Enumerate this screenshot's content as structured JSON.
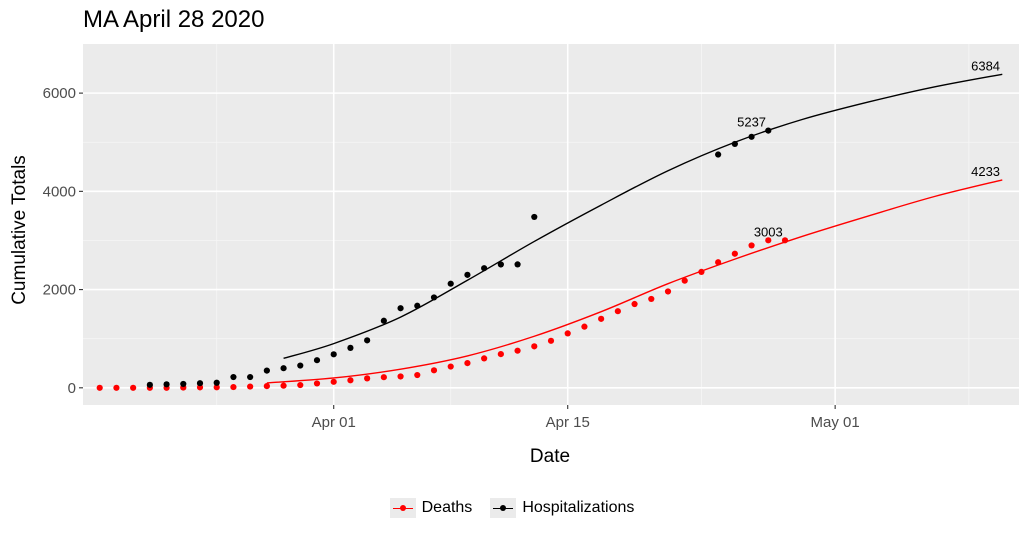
{
  "chart_data": {
    "type": "scatter",
    "title": "MA April 28 2020",
    "xlabel": "Date",
    "ylabel": "Cumulative Totals",
    "x_ticks": [
      "Apr 01",
      "Apr 15",
      "May 01"
    ],
    "y_ticks": [
      "0",
      "2000",
      "4000",
      "6000"
    ],
    "xlim": [
      "2020-03-17",
      "2020-05-12"
    ],
    "ylim": [
      -350,
      7000
    ],
    "grid": true,
    "legend_position": "bottom",
    "series": [
      {
        "name": "Deaths",
        "color": "#ff0000",
        "points": [
          [
            "2020-03-18",
            0
          ],
          [
            "2020-03-19",
            0
          ],
          [
            "2020-03-20",
            0
          ],
          [
            "2020-03-21",
            0
          ],
          [
            "2020-03-22",
            1
          ],
          [
            "2020-03-23",
            5
          ],
          [
            "2020-03-24",
            9
          ],
          [
            "2020-03-25",
            11
          ],
          [
            "2020-03-26",
            15
          ],
          [
            "2020-03-27",
            25
          ],
          [
            "2020-03-28",
            35
          ],
          [
            "2020-03-29",
            44
          ],
          [
            "2020-03-30",
            56
          ],
          [
            "2020-03-31",
            89
          ],
          [
            "2020-04-01",
            122
          ],
          [
            "2020-04-02",
            154
          ],
          [
            "2020-04-03",
            192
          ],
          [
            "2020-04-04",
            216
          ],
          [
            "2020-04-05",
            231
          ],
          [
            "2020-04-06",
            260
          ],
          [
            "2020-04-07",
            356
          ],
          [
            "2020-04-08",
            433
          ],
          [
            "2020-04-09",
            503
          ],
          [
            "2020-04-10",
            599
          ],
          [
            "2020-04-11",
            686
          ],
          [
            "2020-04-12",
            756
          ],
          [
            "2020-04-13",
            844
          ],
          [
            "2020-04-14",
            957
          ],
          [
            "2020-04-15",
            1108
          ],
          [
            "2020-04-16",
            1245
          ],
          [
            "2020-04-17",
            1404
          ],
          [
            "2020-04-18",
            1560
          ],
          [
            "2020-04-19",
            1706
          ],
          [
            "2020-04-20",
            1809
          ],
          [
            "2020-04-21",
            1961
          ],
          [
            "2020-04-22",
            2182
          ],
          [
            "2020-04-23",
            2360
          ],
          [
            "2020-04-24",
            2556
          ],
          [
            "2020-04-25",
            2730
          ],
          [
            "2020-04-26",
            2899
          ],
          [
            "2020-04-27",
            3003
          ],
          [
            "2020-04-28",
            3003
          ]
        ],
        "fit": [
          [
            "2020-03-28",
            100
          ],
          [
            "2020-04-01",
            200
          ],
          [
            "2020-04-05",
            380
          ],
          [
            "2020-04-09",
            650
          ],
          [
            "2020-04-13",
            1050
          ],
          [
            "2020-04-17",
            1550
          ],
          [
            "2020-04-21",
            2120
          ],
          [
            "2020-04-25",
            2620
          ],
          [
            "2020-04-29",
            3080
          ],
          [
            "2020-05-03",
            3500
          ],
          [
            "2020-05-07",
            3900
          ],
          [
            "2020-05-11",
            4233
          ]
        ],
        "end_labels": [
          {
            "date": "2020-04-27",
            "value": 3003,
            "text": "3003"
          },
          {
            "date": "2020-05-10",
            "value": 4233,
            "text": "4233"
          }
        ]
      },
      {
        "name": "Hospitalizations",
        "color": "#000000",
        "points": [
          [
            "2020-03-21",
            61
          ],
          [
            "2020-03-22",
            71
          ],
          [
            "2020-03-23",
            79
          ],
          [
            "2020-03-24",
            94
          ],
          [
            "2020-03-25",
            103
          ],
          [
            "2020-03-26",
            219
          ],
          [
            "2020-03-27",
            219
          ],
          [
            "2020-03-28",
            350
          ],
          [
            "2020-03-29",
            399
          ],
          [
            "2020-03-30",
            453
          ],
          [
            "2020-03-31",
            562
          ],
          [
            "2020-04-01",
            682
          ],
          [
            "2020-04-02",
            813
          ],
          [
            "2020-04-03",
            966
          ],
          [
            "2020-04-04",
            1365
          ],
          [
            "2020-04-05",
            1620
          ],
          [
            "2020-04-06",
            1670
          ],
          [
            "2020-04-07",
            1840
          ],
          [
            "2020-04-08",
            2120
          ],
          [
            "2020-04-09",
            2300
          ],
          [
            "2020-04-10",
            2436
          ],
          [
            "2020-04-11",
            2511
          ],
          [
            "2020-04-12",
            2513
          ],
          [
            "2020-04-13",
            3479
          ],
          [
            "2020-04-24",
            4750
          ],
          [
            "2020-04-25",
            4965
          ],
          [
            "2020-04-26",
            5110
          ],
          [
            "2020-04-27",
            5237
          ]
        ],
        "fit": [
          [
            "2020-03-29",
            600
          ],
          [
            "2020-04-01",
            900
          ],
          [
            "2020-04-05",
            1440
          ],
          [
            "2020-04-09",
            2190
          ],
          [
            "2020-04-13",
            2980
          ],
          [
            "2020-04-17",
            3720
          ],
          [
            "2020-04-21",
            4420
          ],
          [
            "2020-04-25",
            5000
          ],
          [
            "2020-04-29",
            5460
          ],
          [
            "2020-05-03",
            5820
          ],
          [
            "2020-05-07",
            6130
          ],
          [
            "2020-05-11",
            6384
          ]
        ],
        "end_labels": [
          {
            "date": "2020-04-26",
            "value": 5237,
            "text": "5237"
          },
          {
            "date": "2020-05-10",
            "value": 6384,
            "text": "6384"
          }
        ]
      }
    ]
  }
}
